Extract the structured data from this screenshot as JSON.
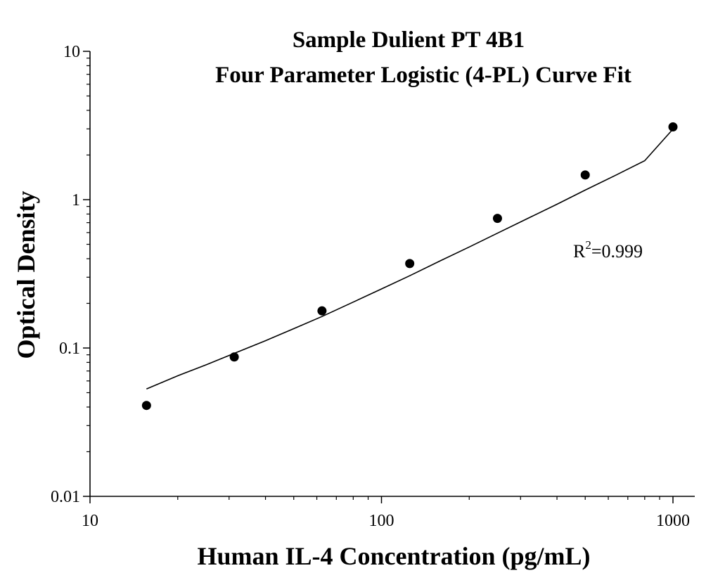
{
  "chart_data": {
    "type": "scatter",
    "title": "Sample Dulient PT 4B1",
    "subtitle": "Four Parameter Logistic (4-PL) Curve Fit",
    "xlabel": "Human IL-4 Concentration (pg/mL)",
    "ylabel": "Optical Density",
    "x_scale": "log",
    "y_scale": "log",
    "xlim": [
      10,
      1000
    ],
    "ylim": [
      0.01,
      10
    ],
    "x_ticks": [
      "10",
      "100",
      "1000"
    ],
    "y_ticks": [
      "0.01",
      "0.1",
      "1",
      "10"
    ],
    "grid": false,
    "colors": {
      "marker": "#000000",
      "curve": "#000000",
      "axis": "#000000"
    },
    "annotation": {
      "base": "R",
      "sup": "2",
      "text": "=0.999"
    },
    "series": [
      {
        "kind": "points",
        "x": [
          15.625,
          31.25,
          62.5,
          125,
          250,
          500,
          1000
        ],
        "y": [
          0.041,
          0.087,
          0.178,
          0.371,
          0.748,
          1.467,
          3.093
        ]
      },
      {
        "kind": "fit-curve",
        "x": [
          15.625,
          20,
          25,
          31.25,
          40,
          50,
          62.5,
          80,
          100,
          125,
          160,
          200,
          250,
          320,
          400,
          500,
          640,
          800,
          1000
        ],
        "y": [
          0.053,
          0.065,
          0.077,
          0.092,
          0.112,
          0.135,
          0.163,
          0.204,
          0.25,
          0.307,
          0.389,
          0.48,
          0.594,
          0.753,
          0.932,
          1.16,
          1.47,
          1.83,
          2.99
        ]
      }
    ]
  }
}
